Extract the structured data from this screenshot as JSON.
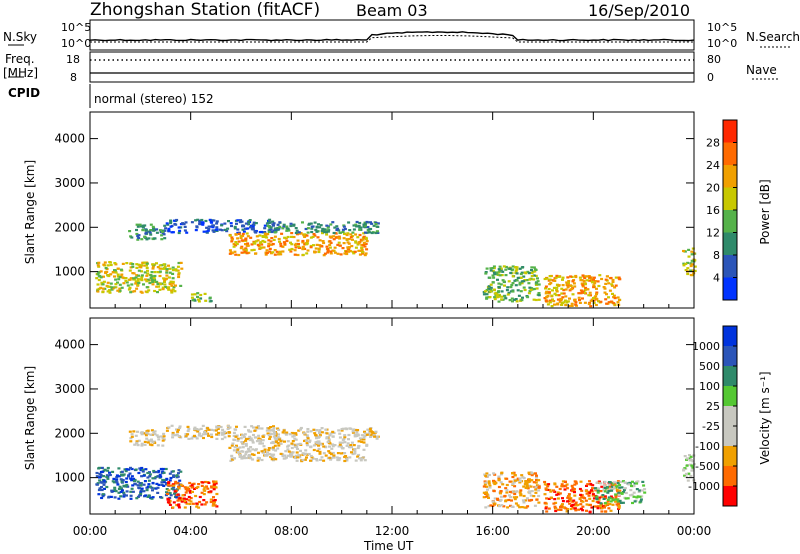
{
  "header": {
    "station": "Zhongshan Station (fitACF)",
    "beam": "Beam 03",
    "date": "16/Sep/2010"
  },
  "top_panels": {
    "nsky_label": "N.Sky",
    "nsky_ticks": [
      "10^5",
      "10^0"
    ],
    "nsearch_label": "N.Search",
    "nsearch_ticks": [
      "10^5",
      "10^0"
    ],
    "freq_label": "Freq.",
    "freq_unit": "[MHz]",
    "freq_ticks": [
      "18",
      "8"
    ],
    "nave_label": "Nave",
    "nave_ticks": [
      "80",
      "0"
    ],
    "cpid_label": "CPID",
    "cpid_text": "normal (stereo) 152"
  },
  "colors": {
    "power_scale": [
      "#0033ff",
      "#2b55b8",
      "#2f8a6a",
      "#55b24a",
      "#c8c800",
      "#f0a000",
      "#ff6a00",
      "#ff2800"
    ],
    "velocity_scale": [
      "#ff0000",
      "#ff6a00",
      "#f0a000",
      "#c8c8c0",
      "#c8c8c0",
      "#55c833",
      "#2f8a6a",
      "#2b55b8",
      "#0033dd"
    ]
  },
  "chart_data": [
    {
      "type": "heatmap",
      "panel": "power",
      "ylabel": "Slant Range [km]",
      "xlabel": "Time UT",
      "xticks": [
        "00:00",
        "04:00",
        "08:00",
        "12:00",
        "16:00",
        "20:00",
        "00:00"
      ],
      "yticks": [
        "1000",
        "2000",
        "3000",
        "4000"
      ],
      "ylim": [
        180,
        4600
      ],
      "colorbar_label": "Power [dB]",
      "colorbar_ticks": [
        "4",
        "8",
        "12",
        "16",
        "20",
        "24",
        "28"
      ],
      "regions": [
        {
          "t0": 0.2,
          "t1": 3.6,
          "r0": 500,
          "r1": 1200,
          "level": 4
        },
        {
          "t0": 1.5,
          "t1": 3.0,
          "r0": 1700,
          "r1": 2050,
          "level": 2
        },
        {
          "t0": 3.0,
          "t1": 7.5,
          "r0": 1850,
          "r1": 2150,
          "level": 1
        },
        {
          "t0": 4.0,
          "t1": 4.8,
          "r0": 300,
          "r1": 500,
          "level": 3
        },
        {
          "t0": 5.5,
          "t1": 11.0,
          "r0": 1350,
          "r1": 1850,
          "level": 5
        },
        {
          "t0": 7.0,
          "t1": 11.5,
          "r0": 1850,
          "r1": 2100,
          "level": 2
        },
        {
          "t0": 15.6,
          "t1": 17.8,
          "r0": 300,
          "r1": 1100,
          "level": 3
        },
        {
          "t0": 18.0,
          "t1": 21.0,
          "r0": 200,
          "r1": 900,
          "level": 5
        },
        {
          "t0": 23.5,
          "t1": 24.0,
          "r0": 900,
          "r1": 1500,
          "level": 4
        }
      ]
    },
    {
      "type": "heatmap",
      "panel": "velocity",
      "ylabel": "Slant Range [km]",
      "xlabel": "Time UT",
      "xticks": [
        "00:00",
        "04:00",
        "08:00",
        "12:00",
        "16:00",
        "20:00",
        "00:00"
      ],
      "yticks": [
        "1000",
        "2000",
        "3000",
        "4000"
      ],
      "ylim": [
        180,
        4600
      ],
      "colorbar_label": "Velocity [m s⁻¹]",
      "colorbar_ticks": [
        "-1000",
        "-500",
        "-100",
        "-25",
        "25",
        "100",
        "500",
        "1000"
      ],
      "regions": [
        {
          "t0": 0.2,
          "t1": 3.6,
          "r0": 500,
          "r1": 1200,
          "level": 7
        },
        {
          "t0": 1.5,
          "t1": 3.0,
          "r0": 1700,
          "r1": 2050,
          "level": 3
        },
        {
          "t0": 3.0,
          "t1": 7.5,
          "r0": 1850,
          "r1": 2150,
          "level": 3
        },
        {
          "t0": 3.0,
          "t1": 5.0,
          "r0": 300,
          "r1": 900,
          "level": 1
        },
        {
          "t0": 5.5,
          "t1": 11.0,
          "r0": 1350,
          "r1": 1850,
          "level": 3
        },
        {
          "t0": 7.0,
          "t1": 11.5,
          "r0": 1850,
          "r1": 2100,
          "level": 3
        },
        {
          "t0": 15.6,
          "t1": 17.8,
          "r0": 300,
          "r1": 1100,
          "level": 2
        },
        {
          "t0": 18.0,
          "t1": 21.0,
          "r0": 200,
          "r1": 900,
          "level": 1
        },
        {
          "t0": 20.0,
          "t1": 22.0,
          "r0": 400,
          "r1": 900,
          "level": 5
        },
        {
          "t0": 23.5,
          "t1": 24.0,
          "r0": 900,
          "r1": 1500,
          "level": 4
        }
      ]
    }
  ]
}
